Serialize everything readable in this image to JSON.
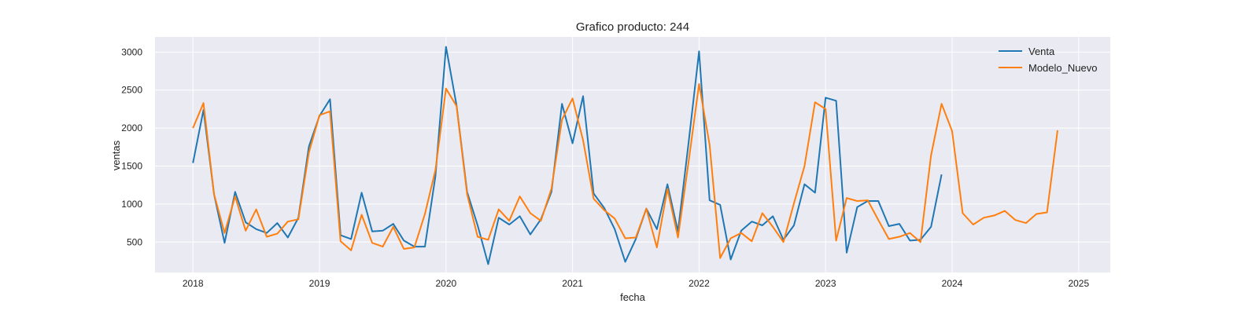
{
  "chart_data": {
    "type": "line",
    "title": "Grafico producto: 244",
    "xlabel": "fecha",
    "ylabel": "ventas",
    "xlim": [
      2017.7,
      2025.25
    ],
    "ylim": [
      100,
      3200
    ],
    "x_ticks": [
      2018,
      2019,
      2020,
      2021,
      2022,
      2023,
      2024,
      2025
    ],
    "x_tick_labels": [
      "2018",
      "2019",
      "2020",
      "2021",
      "2022",
      "2023",
      "2024",
      "2025"
    ],
    "y_ticks": [
      500,
      1000,
      1500,
      2000,
      2500,
      3000
    ],
    "y_tick_labels": [
      "500",
      "1000",
      "1500",
      "2000",
      "2500",
      "3000"
    ],
    "legend_position": "top-right",
    "background": "#eaeaf2",
    "series": [
      {
        "name": "Venta",
        "color": "#1f77b4",
        "x_start": 2018.0,
        "step": 0.08333,
        "values": [
          1540,
          2240,
          1130,
          490,
          1160,
          760,
          670,
          620,
          750,
          560,
          820,
          1760,
          2160,
          2380,
          590,
          540,
          1150,
          640,
          650,
          740,
          520,
          440,
          440,
          1370,
          3070,
          2300,
          1160,
          720,
          210,
          820,
          730,
          840,
          600,
          800,
          1160,
          2320,
          1800,
          2420,
          1140,
          950,
          670,
          240,
          540,
          940,
          670,
          1260,
          640,
          1800,
          3010,
          1050,
          990,
          270,
          650,
          770,
          720,
          840,
          530,
          720,
          1260,
          1150,
          2400,
          2360,
          360,
          960,
          1040,
          1040,
          710,
          740,
          520,
          530,
          700,
          1390
        ]
      },
      {
        "name": "Modelo_Nuevo",
        "color": "#ff7f0e",
        "x_start": 2018.0,
        "step": 0.08333,
        "values": [
          2000,
          2330,
          1130,
          620,
          1100,
          650,
          930,
          570,
          610,
          770,
          800,
          1680,
          2170,
          2220,
          510,
          390,
          860,
          490,
          440,
          700,
          410,
          430,
          870,
          1450,
          2520,
          2290,
          1130,
          570,
          530,
          930,
          780,
          1100,
          880,
          780,
          1200,
          2110,
          2390,
          1840,
          1070,
          920,
          810,
          550,
          560,
          940,
          430,
          1200,
          560,
          1550,
          2580,
          1780,
          290,
          550,
          620,
          510,
          880,
          700,
          500,
          1010,
          1500,
          2340,
          2250,
          520,
          1080,
          1040,
          1050,
          790,
          540,
          570,
          620,
          500,
          1640,
          2320,
          1960,
          880,
          730,
          820,
          850,
          910,
          790,
          750,
          870,
          890,
          1970
        ]
      }
    ]
  }
}
